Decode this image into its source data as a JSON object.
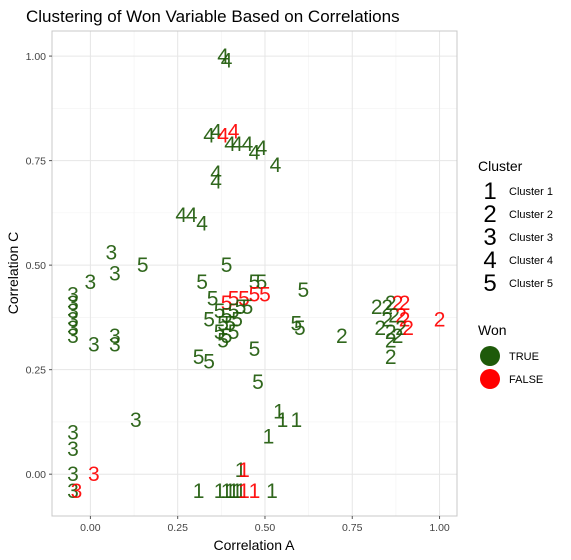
{
  "chart_data": {
    "type": "scatter",
    "title": "Clustering of Won Variable Based on Correlations",
    "xlabel": "Correlation A",
    "ylabel": "Correlation C",
    "xlim": [
      -0.11,
      1.05
    ],
    "ylim": [
      -0.1,
      1.06
    ],
    "x_ticks": [
      0.0,
      0.25,
      0.5,
      0.75,
      1.0
    ],
    "x_tick_labels": [
      "0.00",
      "0.25",
      "0.50",
      "0.75",
      "1.00"
    ],
    "y_ticks": [
      0.0,
      0.25,
      0.5,
      0.75,
      1.0
    ],
    "y_tick_labels": [
      "0.00",
      "0.25",
      "0.50",
      "0.75",
      "1.00"
    ],
    "grid": true,
    "marker": "cluster number glyph",
    "color_legend": {
      "title": "Won",
      "entries": [
        {
          "label": "TRUE",
          "color": "#1e5a0a"
        },
        {
          "label": "FALSE",
          "color": "#ff0000"
        }
      ]
    },
    "shape_legend": {
      "title": "Cluster",
      "entries": [
        {
          "glyph": "1",
          "label": "Cluster 1"
        },
        {
          "glyph": "2",
          "label": "Cluster 2"
        },
        {
          "glyph": "3",
          "label": "Cluster 3"
        },
        {
          "glyph": "4",
          "label": "Cluster 4"
        },
        {
          "glyph": "5",
          "label": "Cluster 5"
        }
      ]
    },
    "legend_position": "right",
    "points": [
      {
        "x": 0.38,
        "y": 1.0,
        "cluster": 4,
        "won": true
      },
      {
        "x": 0.39,
        "y": 0.99,
        "cluster": 4,
        "won": true
      },
      {
        "x": 0.34,
        "y": 0.81,
        "cluster": 4,
        "won": true
      },
      {
        "x": 0.36,
        "y": 0.82,
        "cluster": 4,
        "won": true
      },
      {
        "x": 0.38,
        "y": 0.81,
        "cluster": 4,
        "won": false
      },
      {
        "x": 0.41,
        "y": 0.82,
        "cluster": 4,
        "won": false
      },
      {
        "x": 0.4,
        "y": 0.79,
        "cluster": 4,
        "won": true
      },
      {
        "x": 0.42,
        "y": 0.79,
        "cluster": 4,
        "won": true
      },
      {
        "x": 0.45,
        "y": 0.79,
        "cluster": 4,
        "won": true
      },
      {
        "x": 0.47,
        "y": 0.77,
        "cluster": 4,
        "won": true
      },
      {
        "x": 0.49,
        "y": 0.78,
        "cluster": 4,
        "won": true
      },
      {
        "x": 0.53,
        "y": 0.74,
        "cluster": 4,
        "won": true
      },
      {
        "x": 0.36,
        "y": 0.72,
        "cluster": 4,
        "won": true
      },
      {
        "x": 0.36,
        "y": 0.7,
        "cluster": 4,
        "won": true
      },
      {
        "x": 0.26,
        "y": 0.62,
        "cluster": 4,
        "won": true
      },
      {
        "x": 0.29,
        "y": 0.62,
        "cluster": 4,
        "won": true
      },
      {
        "x": 0.32,
        "y": 0.6,
        "cluster": 4,
        "won": true
      },
      {
        "x": 0.06,
        "y": 0.53,
        "cluster": 3,
        "won": true
      },
      {
        "x": 0.07,
        "y": 0.48,
        "cluster": 3,
        "won": true
      },
      {
        "x": 0.15,
        "y": 0.5,
        "cluster": 5,
        "won": true
      },
      {
        "x": 0.39,
        "y": 0.5,
        "cluster": 5,
        "won": true
      },
      {
        "x": 0.0,
        "y": 0.46,
        "cluster": 3,
        "won": true
      },
      {
        "x": 0.32,
        "y": 0.46,
        "cluster": 5,
        "won": true
      },
      {
        "x": 0.47,
        "y": 0.46,
        "cluster": 5,
        "won": true
      },
      {
        "x": 0.49,
        "y": 0.46,
        "cluster": 5,
        "won": true
      },
      {
        "x": 0.61,
        "y": 0.44,
        "cluster": 5,
        "won": true
      },
      {
        "x": -0.05,
        "y": 0.43,
        "cluster": 3,
        "won": true
      },
      {
        "x": -0.05,
        "y": 0.41,
        "cluster": 3,
        "won": true
      },
      {
        "x": -0.05,
        "y": 0.39,
        "cluster": 3,
        "won": true
      },
      {
        "x": -0.05,
        "y": 0.37,
        "cluster": 3,
        "won": true
      },
      {
        "x": -0.05,
        "y": 0.35,
        "cluster": 3,
        "won": true
      },
      {
        "x": -0.05,
        "y": 0.33,
        "cluster": 3,
        "won": true
      },
      {
        "x": 0.35,
        "y": 0.42,
        "cluster": 5,
        "won": true
      },
      {
        "x": 0.39,
        "y": 0.41,
        "cluster": 5,
        "won": false
      },
      {
        "x": 0.41,
        "y": 0.42,
        "cluster": 5,
        "won": false
      },
      {
        "x": 0.44,
        "y": 0.42,
        "cluster": 5,
        "won": false
      },
      {
        "x": 0.47,
        "y": 0.43,
        "cluster": 5,
        "won": false
      },
      {
        "x": 0.5,
        "y": 0.43,
        "cluster": 5,
        "won": false
      },
      {
        "x": 0.37,
        "y": 0.39,
        "cluster": 5,
        "won": true
      },
      {
        "x": 0.39,
        "y": 0.38,
        "cluster": 5,
        "won": true
      },
      {
        "x": 0.41,
        "y": 0.39,
        "cluster": 5,
        "won": true
      },
      {
        "x": 0.43,
        "y": 0.4,
        "cluster": 5,
        "won": true
      },
      {
        "x": 0.45,
        "y": 0.4,
        "cluster": 5,
        "won": true
      },
      {
        "x": 0.34,
        "y": 0.37,
        "cluster": 5,
        "won": true
      },
      {
        "x": 0.38,
        "y": 0.36,
        "cluster": 5,
        "won": true
      },
      {
        "x": 0.4,
        "y": 0.36,
        "cluster": 5,
        "won": true
      },
      {
        "x": 0.42,
        "y": 0.37,
        "cluster": 5,
        "won": true
      },
      {
        "x": 0.37,
        "y": 0.34,
        "cluster": 5,
        "won": true
      },
      {
        "x": 0.39,
        "y": 0.33,
        "cluster": 5,
        "won": true
      },
      {
        "x": 0.41,
        "y": 0.34,
        "cluster": 5,
        "won": true
      },
      {
        "x": 0.38,
        "y": 0.32,
        "cluster": 5,
        "won": true
      },
      {
        "x": 0.59,
        "y": 0.36,
        "cluster": 5,
        "won": true
      },
      {
        "x": 0.6,
        "y": 0.35,
        "cluster": 5,
        "won": true
      },
      {
        "x": 0.07,
        "y": 0.33,
        "cluster": 3,
        "won": true
      },
      {
        "x": 0.07,
        "y": 0.31,
        "cluster": 3,
        "won": true
      },
      {
        "x": 0.01,
        "y": 0.31,
        "cluster": 3,
        "won": true
      },
      {
        "x": 0.72,
        "y": 0.33,
        "cluster": 2,
        "won": true
      },
      {
        "x": 0.47,
        "y": 0.3,
        "cluster": 5,
        "won": true
      },
      {
        "x": 0.31,
        "y": 0.28,
        "cluster": 5,
        "won": true
      },
      {
        "x": 0.34,
        "y": 0.27,
        "cluster": 5,
        "won": true
      },
      {
        "x": 0.48,
        "y": 0.22,
        "cluster": 5,
        "won": true
      },
      {
        "x": 0.82,
        "y": 0.4,
        "cluster": 2,
        "won": true
      },
      {
        "x": 0.85,
        "y": 0.4,
        "cluster": 2,
        "won": true
      },
      {
        "x": 0.86,
        "y": 0.41,
        "cluster": 2,
        "won": true
      },
      {
        "x": 0.88,
        "y": 0.41,
        "cluster": 2,
        "won": false
      },
      {
        "x": 0.9,
        "y": 0.41,
        "cluster": 2,
        "won": false
      },
      {
        "x": 0.85,
        "y": 0.37,
        "cluster": 2,
        "won": true
      },
      {
        "x": 0.87,
        "y": 0.38,
        "cluster": 2,
        "won": true
      },
      {
        "x": 0.89,
        "y": 0.38,
        "cluster": 2,
        "won": false
      },
      {
        "x": 0.9,
        "y": 0.37,
        "cluster": 2,
        "won": false
      },
      {
        "x": 0.83,
        "y": 0.35,
        "cluster": 2,
        "won": true
      },
      {
        "x": 0.86,
        "y": 0.34,
        "cluster": 2,
        "won": true
      },
      {
        "x": 0.89,
        "y": 0.35,
        "cluster": 2,
        "won": true
      },
      {
        "x": 0.91,
        "y": 0.35,
        "cluster": 2,
        "won": false
      },
      {
        "x": 0.86,
        "y": 0.32,
        "cluster": 2,
        "won": true
      },
      {
        "x": 0.88,
        "y": 0.33,
        "cluster": 2,
        "won": true
      },
      {
        "x": 0.86,
        "y": 0.28,
        "cluster": 2,
        "won": true
      },
      {
        "x": 1.0,
        "y": 0.37,
        "cluster": 2,
        "won": false
      },
      {
        "x": 0.13,
        "y": 0.13,
        "cluster": 3,
        "won": true
      },
      {
        "x": 0.54,
        "y": 0.15,
        "cluster": 1,
        "won": true
      },
      {
        "x": 0.55,
        "y": 0.13,
        "cluster": 1,
        "won": true
      },
      {
        "x": 0.59,
        "y": 0.13,
        "cluster": 1,
        "won": true
      },
      {
        "x": 0.51,
        "y": 0.09,
        "cluster": 1,
        "won": true
      },
      {
        "x": -0.05,
        "y": 0.1,
        "cluster": 3,
        "won": true
      },
      {
        "x": -0.05,
        "y": 0.06,
        "cluster": 3,
        "won": true
      },
      {
        "x": -0.05,
        "y": 0.0,
        "cluster": 3,
        "won": true
      },
      {
        "x": 0.01,
        "y": 0.0,
        "cluster": 3,
        "won": false
      },
      {
        "x": -0.05,
        "y": -0.04,
        "cluster": 3,
        "won": true
      },
      {
        "x": -0.04,
        "y": -0.04,
        "cluster": 3,
        "won": false
      },
      {
        "x": 0.43,
        "y": 0.01,
        "cluster": 1,
        "won": true
      },
      {
        "x": 0.44,
        "y": 0.01,
        "cluster": 1,
        "won": false
      },
      {
        "x": 0.31,
        "y": -0.04,
        "cluster": 1,
        "won": true
      },
      {
        "x": 0.37,
        "y": -0.04,
        "cluster": 1,
        "won": true
      },
      {
        "x": 0.39,
        "y": -0.04,
        "cluster": 1,
        "won": true
      },
      {
        "x": 0.4,
        "y": -0.04,
        "cluster": 1,
        "won": true
      },
      {
        "x": 0.41,
        "y": -0.04,
        "cluster": 1,
        "won": true
      },
      {
        "x": 0.42,
        "y": -0.04,
        "cluster": 1,
        "won": true
      },
      {
        "x": 0.43,
        "y": -0.04,
        "cluster": 1,
        "won": true
      },
      {
        "x": 0.44,
        "y": -0.04,
        "cluster": 1,
        "won": false
      },
      {
        "x": 0.47,
        "y": -0.04,
        "cluster": 1,
        "won": false
      },
      {
        "x": 0.52,
        "y": -0.04,
        "cluster": 1,
        "won": true
      }
    ]
  }
}
